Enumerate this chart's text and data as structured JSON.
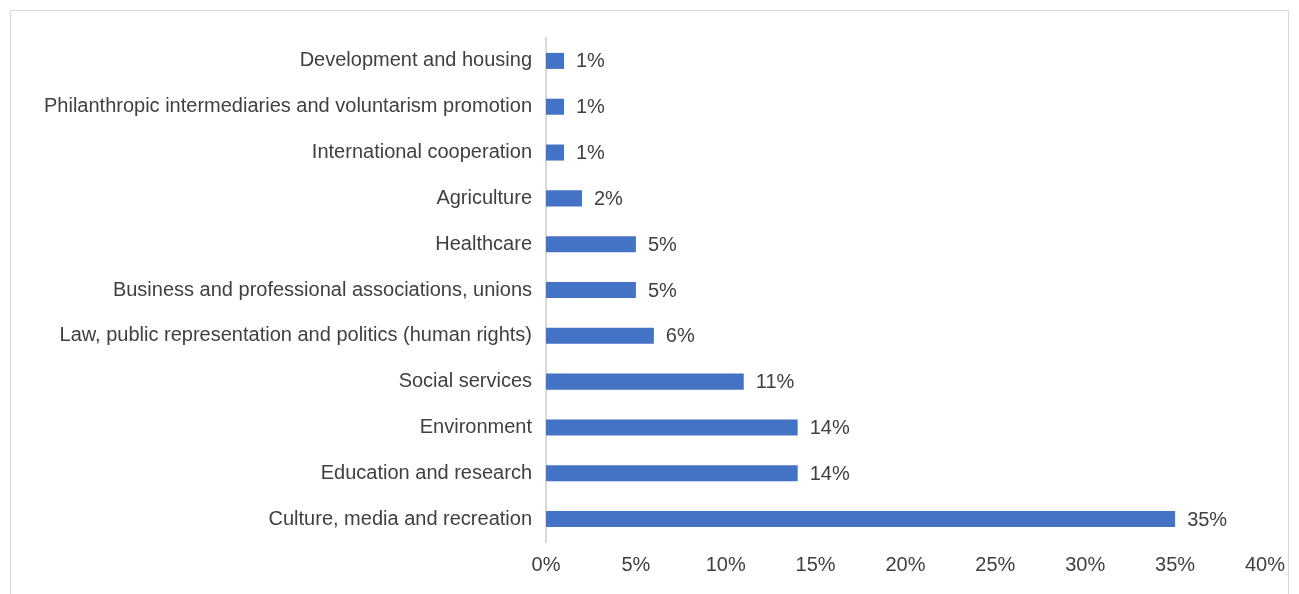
{
  "chart_data": {
    "type": "bar",
    "orientation": "horizontal",
    "categories": [
      "Development and housing",
      "Philanthropic intermediaries and voluntarism promotion",
      "International cooperation",
      "Agriculture",
      "Healthcare",
      "Business and professional associations, unions",
      "Law, public representation and politics (human rights)",
      "Social services",
      "Environment",
      "Education and research",
      "Culture, media and recreation"
    ],
    "values": [
      1,
      1,
      1,
      2,
      5,
      5,
      6,
      11,
      14,
      14,
      35
    ],
    "value_labels": [
      "1%",
      "1%",
      "1%",
      "2%",
      "5%",
      "5%",
      "6%",
      "11%",
      "14%",
      "14%",
      "35%"
    ],
    "color": "#4472c4",
    "xlim": [
      0,
      40
    ],
    "xticks": [
      {
        "value": 0,
        "label": "0%"
      },
      {
        "value": 5,
        "label": "5%"
      },
      {
        "value": 10,
        "label": "10%"
      },
      {
        "value": 15,
        "label": "15%"
      },
      {
        "value": 20,
        "label": "20%"
      },
      {
        "value": 25,
        "label": "25%"
      },
      {
        "value": 30,
        "label": "30%"
      },
      {
        "value": 35,
        "label": "35%"
      },
      {
        "value": 40,
        "label": "40%"
      }
    ]
  }
}
